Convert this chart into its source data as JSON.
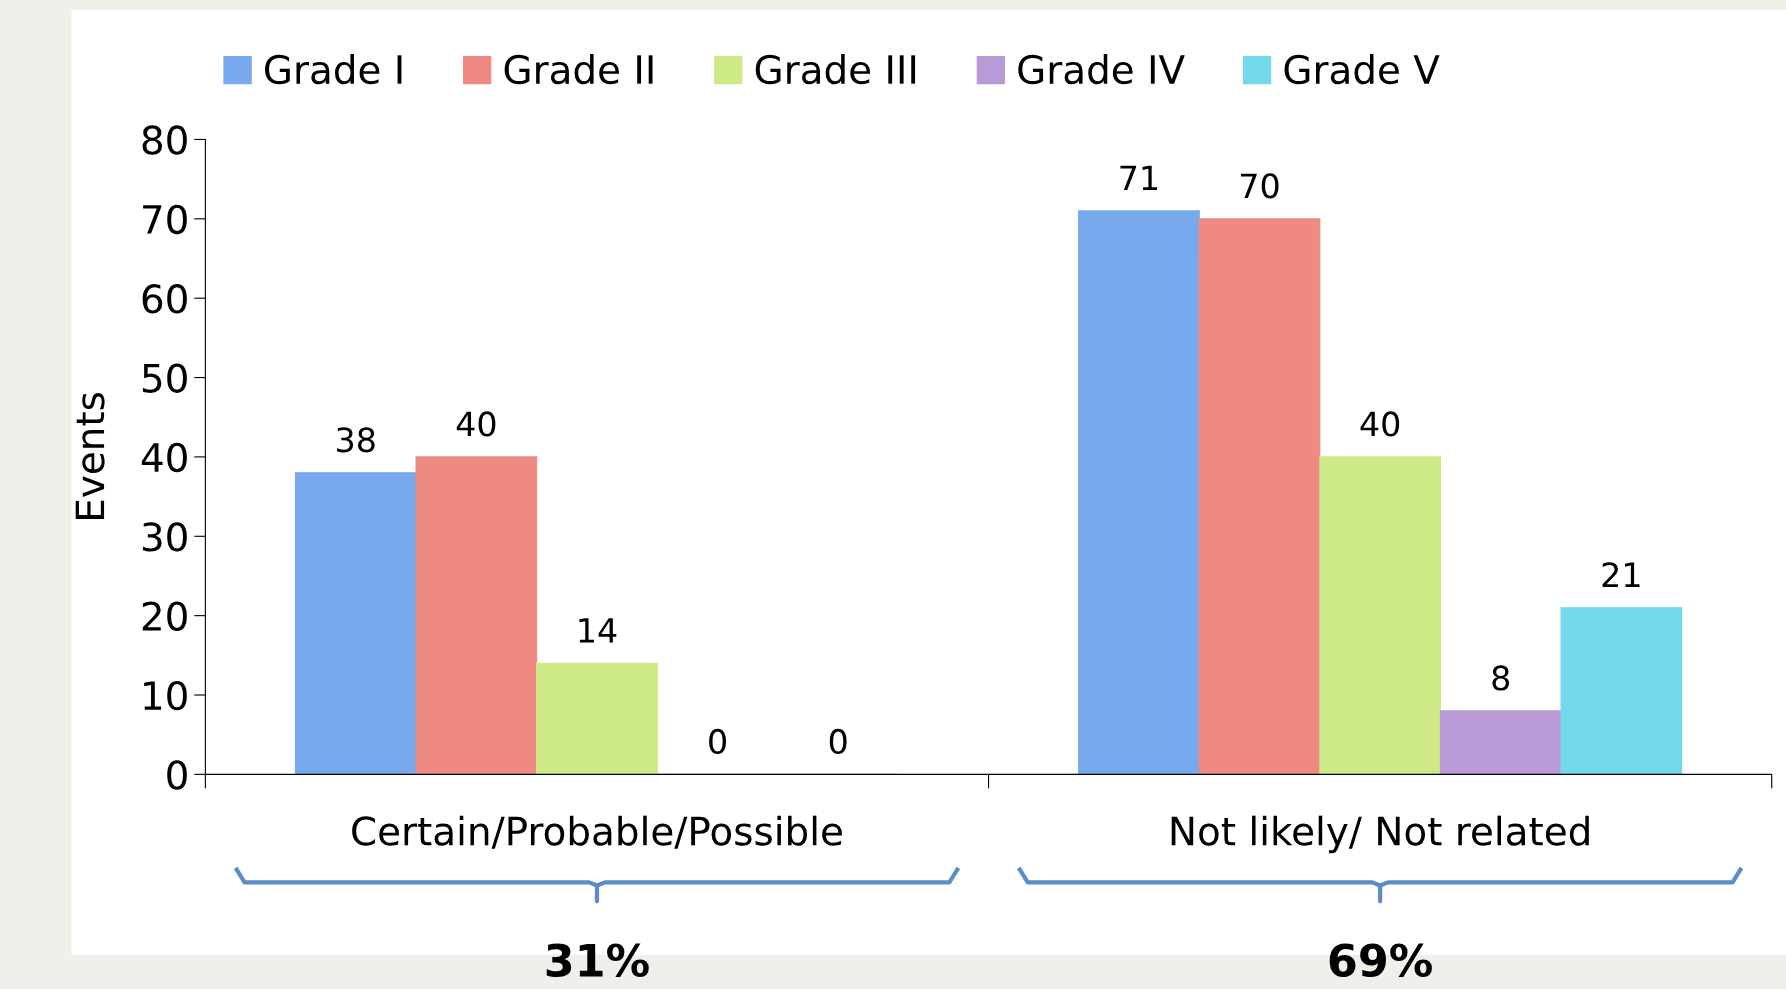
{
  "chart_data": {
    "type": "bar",
    "ylabel": "Events",
    "categories": [
      "Certain/Probable/Possible",
      "Not likely/ Not related"
    ],
    "series": [
      {
        "name": "Grade I",
        "color": "#78a9ec",
        "values": [
          38,
          71
        ]
      },
      {
        "name": "Grade II",
        "color": "#ef8a82",
        "values": [
          40,
          70
        ]
      },
      {
        "name": "Grade III",
        "color": "#cdea86",
        "values": [
          14,
          40
        ]
      },
      {
        "name": "Grade IV",
        "color": "#b89bd6",
        "values": [
          0,
          8
        ]
      },
      {
        "name": "Grade V",
        "color": "#72d9ea",
        "values": [
          0,
          21
        ]
      }
    ],
    "ylim": [
      0,
      80
    ],
    "yticks": [
      0,
      10,
      20,
      30,
      40,
      50,
      60,
      70,
      80
    ],
    "data_labels": true,
    "grid": false,
    "legend": "top",
    "annotations": [
      "31%",
      "69%"
    ]
  }
}
